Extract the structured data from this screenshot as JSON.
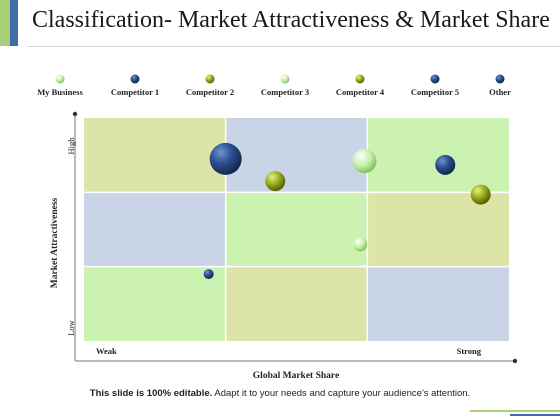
{
  "slide": {
    "title": "Classification- Market Attractiveness & Market Share",
    "footer_bold": "This slide is 100% editable.",
    "footer_rest": " Adapt it to your needs and capture your audience's attention."
  },
  "colors": {
    "green_light": "#ccf2b1",
    "green_medium": "#a7cf76",
    "olive": "#dde4a8",
    "blue_grey": "#c9d4e6",
    "blue_dark": "#2f4f8a"
  },
  "chart_data": {
    "type": "scatter",
    "subtype": "bubble",
    "xlabel": "Global Market Share",
    "ylabel": "Market Attractiveness",
    "x_ticks": [
      "Weak",
      "Strong"
    ],
    "y_ticks": [
      "Low",
      "High"
    ],
    "xlim": [
      0,
      3
    ],
    "ylim": [
      0,
      3
    ],
    "legend_position": "top",
    "grid": {
      "rows": 3,
      "cols": 3,
      "cells": [
        [
          "olive",
          "blue_grey",
          "green_light"
        ],
        [
          "blue_grey",
          "green_light",
          "olive"
        ],
        [
          "green_light",
          "olive",
          "blue_grey"
        ]
      ]
    },
    "series": [
      {
        "name": "My Business",
        "style": "green-light",
        "points": [
          {
            "x": 1.95,
            "y": 1.3,
            "size": 7
          }
        ]
      },
      {
        "name": "Competitor  1",
        "style": "blue",
        "points": [
          {
            "x": 0.88,
            "y": 0.9,
            "size": 5
          }
        ]
      },
      {
        "name": "Competitor  2",
        "style": "olive",
        "points": [
          {
            "x": 1.35,
            "y": 2.15,
            "size": 10
          }
        ]
      },
      {
        "name": "Competitor  3",
        "style": "green-light",
        "points": [
          {
            "x": 1.98,
            "y": 2.42,
            "size": 12
          }
        ]
      },
      {
        "name": "Competitor  4",
        "style": "olive",
        "points": [
          {
            "x": 2.8,
            "y": 1.97,
            "size": 10
          }
        ]
      },
      {
        "name": "Competitor  5",
        "style": "blue",
        "points": [
          {
            "x": 2.55,
            "y": 2.37,
            "size": 10
          }
        ]
      },
      {
        "name": "Other",
        "style": "blue",
        "points": [
          {
            "x": 1.0,
            "y": 2.45,
            "size": 16
          }
        ]
      }
    ]
  }
}
